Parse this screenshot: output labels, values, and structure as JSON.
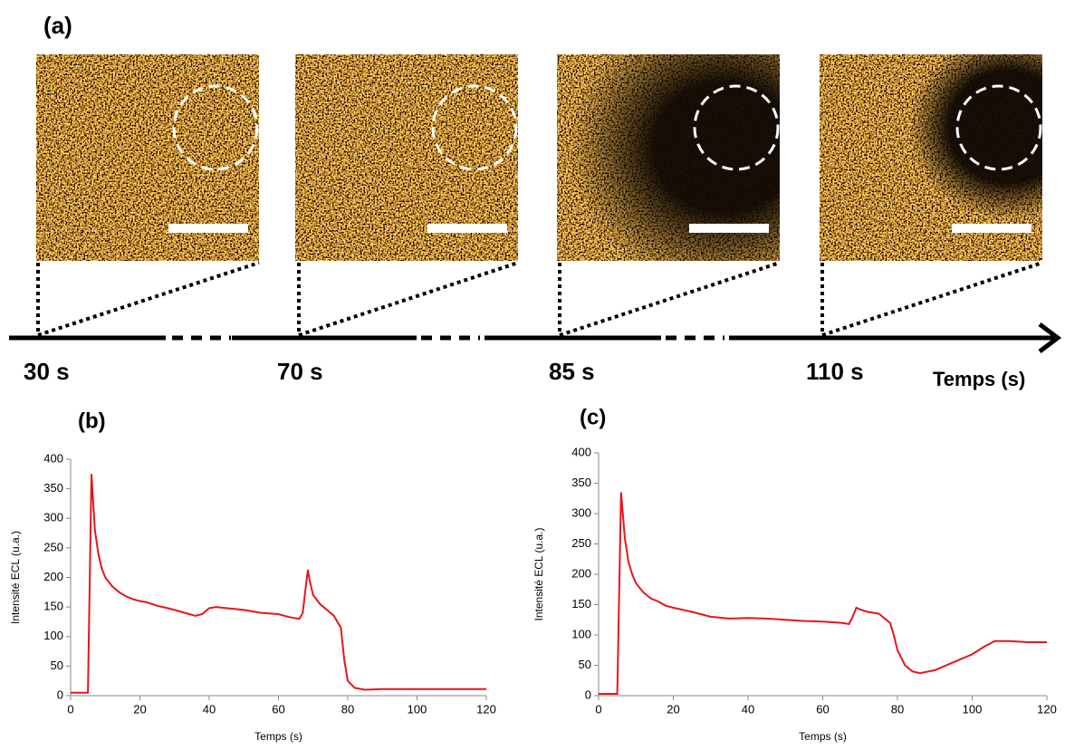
{
  "panel_a": {
    "label": "(a)",
    "times": [
      "30 s",
      "70 s",
      "85 s",
      "110 s"
    ],
    "axis_label": "Temps (s)"
  },
  "chart_data": [
    {
      "type": "line",
      "label": "(b)",
      "xlabel": "Temps (s)",
      "ylabel": "Intensité ECL (u.a.)",
      "xlim": [
        0,
        120
      ],
      "xticks": [
        0,
        20,
        40,
        60,
        80,
        100,
        120
      ],
      "ylim": [
        0,
        400
      ],
      "yticks": [
        0,
        50,
        100,
        150,
        200,
        250,
        300,
        350,
        400
      ],
      "series": [
        {
          "color": "#e8141c",
          "x": [
            0,
            5,
            6,
            7,
            8,
            9,
            10,
            12,
            14,
            16,
            18,
            20,
            22,
            25,
            28,
            30,
            33,
            36,
            38,
            40,
            42,
            45,
            50,
            55,
            60,
            63,
            66,
            67,
            68,
            68.5,
            69,
            70,
            72,
            74,
            76,
            78,
            79,
            80,
            82,
            85,
            90,
            100,
            110,
            120
          ],
          "values": [
            5,
            5,
            375,
            280,
            240,
            215,
            200,
            185,
            175,
            168,
            163,
            160,
            158,
            152,
            148,
            145,
            140,
            135,
            138,
            148,
            150,
            148,
            145,
            140,
            138,
            133,
            130,
            140,
            190,
            213,
            195,
            170,
            155,
            145,
            135,
            115,
            60,
            25,
            13,
            10,
            11,
            11,
            11,
            11
          ]
        }
      ]
    },
    {
      "type": "line",
      "label": "(c)",
      "xlabel": "Temps (s)",
      "ylabel": "Intensité ECL (u.a.)",
      "xlim": [
        0,
        120
      ],
      "xticks": [
        0,
        20,
        40,
        60,
        80,
        100,
        120
      ],
      "ylim": [
        0,
        400
      ],
      "yticks": [
        0,
        50,
        100,
        150,
        200,
        250,
        300,
        350,
        400
      ],
      "series": [
        {
          "color": "#e8141c",
          "x": [
            0,
            5,
            6,
            7,
            8,
            9,
            10,
            12,
            14,
            16,
            18,
            20,
            25,
            30,
            35,
            40,
            45,
            50,
            55,
            60,
            65,
            67,
            68,
            69,
            70,
            72,
            75,
            78,
            79,
            80,
            82,
            84,
            86,
            90,
            95,
            100,
            103,
            106,
            110,
            115,
            120
          ],
          "values": [
            3,
            3,
            335,
            260,
            220,
            200,
            185,
            170,
            160,
            155,
            148,
            145,
            138,
            130,
            127,
            128,
            127,
            125,
            123,
            122,
            120,
            118,
            130,
            145,
            142,
            138,
            135,
            120,
            100,
            75,
            50,
            40,
            37,
            42,
            55,
            68,
            80,
            90,
            90,
            88,
            88
          ]
        }
      ]
    }
  ]
}
